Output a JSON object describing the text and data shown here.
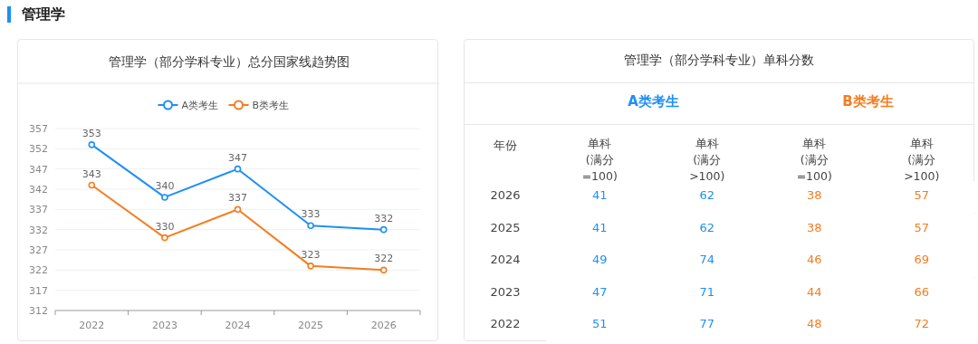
{
  "chart_data": [
    {
      "type": "other",
      "title": "管理学"
    },
    {
      "type": "line",
      "title": "管理学（部分学科专业）总分国家线趋势图",
      "categories": [
        "2022",
        "2023",
        "2024",
        "2025",
        "2026"
      ],
      "series": [
        {
          "name": "A类考生",
          "color": "#1e8ff5",
          "values": [
            353,
            340,
            347,
            333,
            332
          ]
        },
        {
          "name": "B类考生",
          "color": "#f57c1f",
          "values": [
            343,
            330,
            337,
            323,
            322
          ]
        }
      ],
      "ylim": [
        312,
        357
      ],
      "yticks": [
        312,
        317,
        322,
        327,
        332,
        337,
        342,
        347,
        352,
        357
      ],
      "grid": "y",
      "legend": "top",
      "marker": "circle",
      "line_style": "solid",
      "data_labels": true
    },
    {
      "type": "heatmap",
      "title": "管理学（部分学科专业）单科分数",
      "ylabel": "年份",
      "categories": [
        "单科 (满分=100)",
        "单科 (满分>100)",
        "单科 (满分=100)",
        "单科 (满分>100)"
      ],
      "y_categories": [
        "2026",
        "2025",
        "2024",
        "2023",
        "2022"
      ],
      "annotations": [
        "A类考生",
        "B类考生"
      ],
      "colors": [
        "#1e8ff5",
        "#1e8ff5",
        "#f57c1f",
        "#f57c1f"
      ],
      "cells": [
        [
          41,
          62,
          38,
          57
        ],
        [
          41,
          62,
          38,
          57
        ],
        [
          49,
          74,
          46,
          69
        ],
        [
          47,
          71,
          44,
          66
        ],
        [
          51,
          77,
          48,
          72
        ]
      ],
      "data_labels": true
    }
  ]
}
